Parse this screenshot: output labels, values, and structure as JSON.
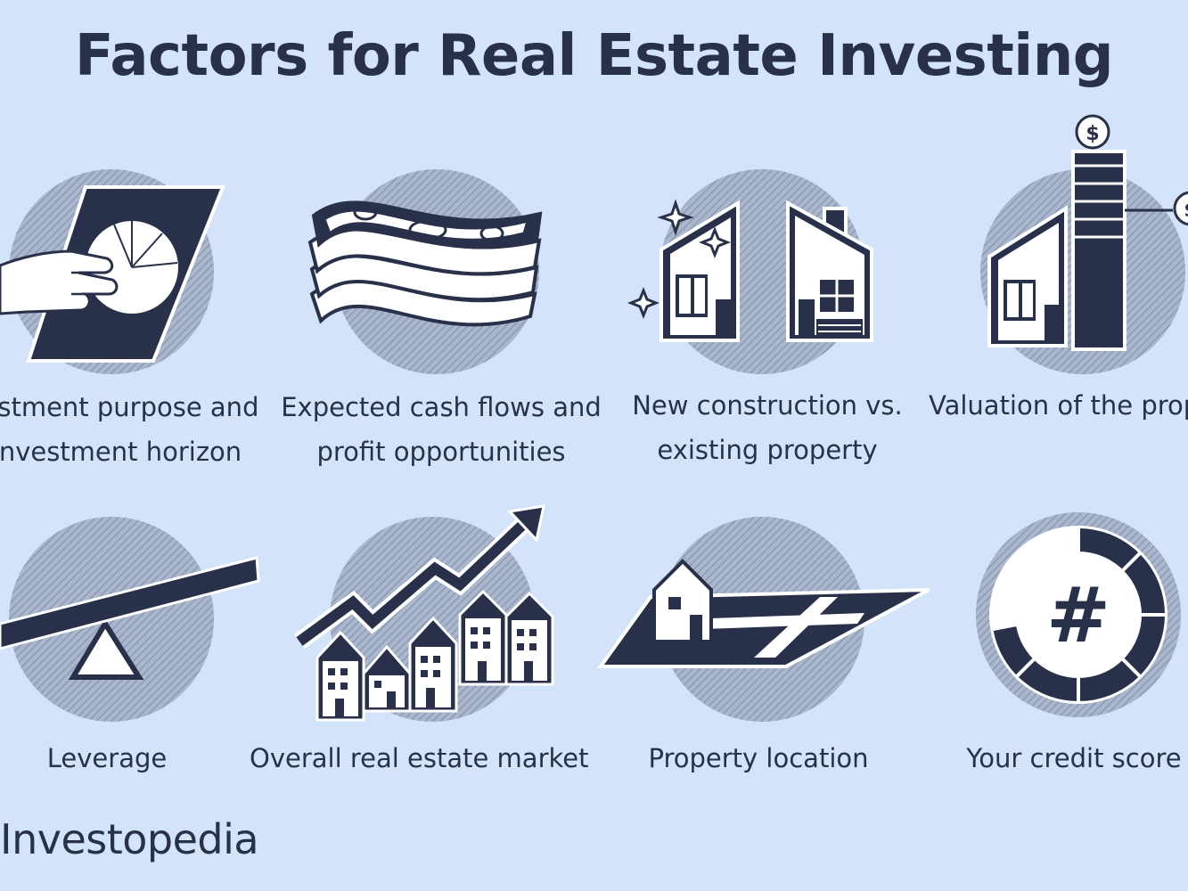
{
  "title": "Factors for Real Estate Investing",
  "brand": "Investopedia",
  "colors": {
    "background": "#d3e3f9",
    "ink": "#28304a",
    "circle": "#9aa9c2",
    "white": "#ffffff"
  },
  "factors": [
    {
      "icon": "hand-pie-chart-icon",
      "lines": [
        "estment purpose and",
        "nvestment horizon"
      ]
    },
    {
      "icon": "cash-stack-icon",
      "lines": [
        "Expected cash flows and",
        "profit opportunities"
      ]
    },
    {
      "icon": "new-vs-existing-house-icon",
      "lines": [
        "New construction vs.",
        "existing property"
      ]
    },
    {
      "icon": "house-valuation-icon",
      "lines": [
        "Valuation of the prop"
      ]
    },
    {
      "icon": "seesaw-lever-icon",
      "lines": [
        "Leverage"
      ]
    },
    {
      "icon": "houses-rising-arrow-icon",
      "lines": [
        "Overall real estate market"
      ]
    },
    {
      "icon": "house-on-map-icon",
      "lines": [
        "Property location"
      ]
    },
    {
      "icon": "credit-score-gauge-icon",
      "lines": [
        "Your credit score"
      ]
    }
  ],
  "badges": {
    "dollar_top": "$",
    "dollar_side": "$"
  },
  "credit_symbol": "#"
}
